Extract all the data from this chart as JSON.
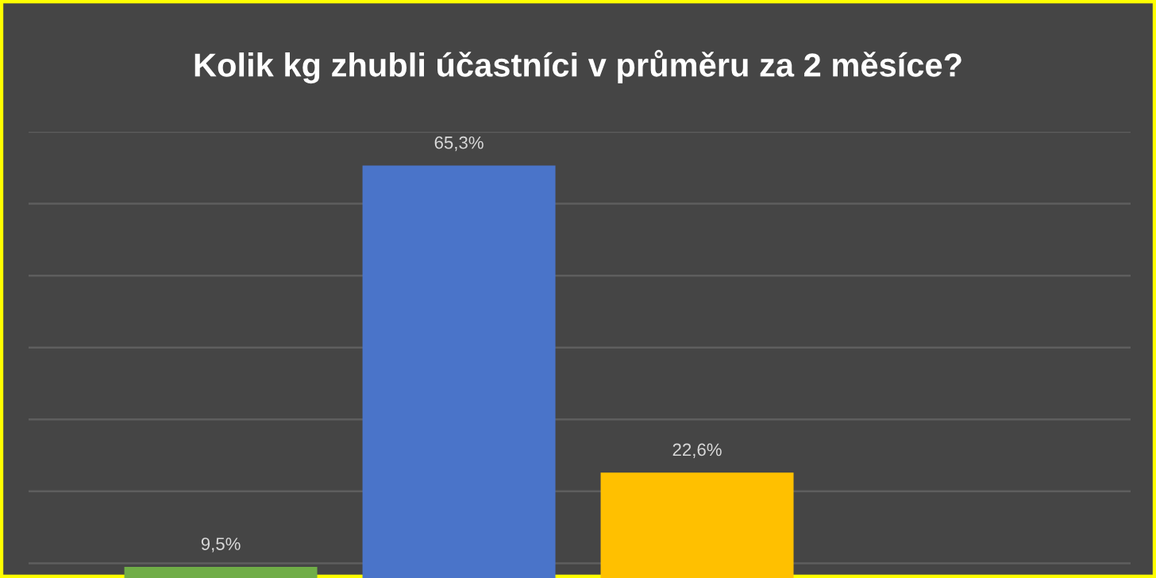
{
  "chart_data": {
    "type": "bar",
    "title": "Kolik kg zhubli účastníci v průměru za 2 měsíce?",
    "categories": [
      null,
      null,
      null
    ],
    "values": [
      9.5,
      65.3,
      22.6
    ],
    "colors": [
      "#70ad47",
      "#4a74c9",
      "#ffc000"
    ],
    "value_labels": [
      "9,5%",
      "65,3%",
      "22,6%"
    ],
    "grid": "y"
  }
}
